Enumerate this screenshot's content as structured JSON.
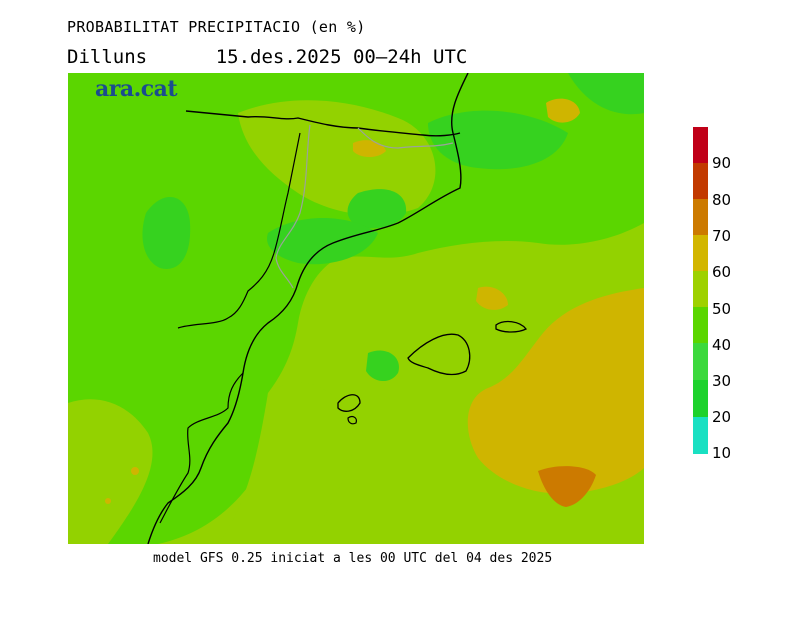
{
  "header": {
    "title": "PROBABILITAT PRECIPITACIO (en %)",
    "subtitle": "Dilluns      15.des.2025 00—24h UTC"
  },
  "brand": {
    "label": "ara.cat"
  },
  "footer": {
    "text": "model GFS 0.25 iniciat a les 00 UTC del 04 des 2025"
  },
  "legend": {
    "ticks": [
      "10",
      "20",
      "30",
      "40",
      "50",
      "60",
      "70",
      "80",
      "90"
    ],
    "colors": [
      "#19e0c2",
      "#1dd22c",
      "#3cd93c",
      "#5bd600",
      "#9ed100",
      "#d2b600",
      "#cc7a00",
      "#c23a00",
      "#c00018"
    ]
  },
  "map_colors": {
    "base": "#93d200",
    "green_light": "#5bd600",
    "green": "#36d21f",
    "yellow": "#cfb500",
    "orange": "#cc7a00",
    "coast": "#000000",
    "border": "#9aa39a"
  }
}
